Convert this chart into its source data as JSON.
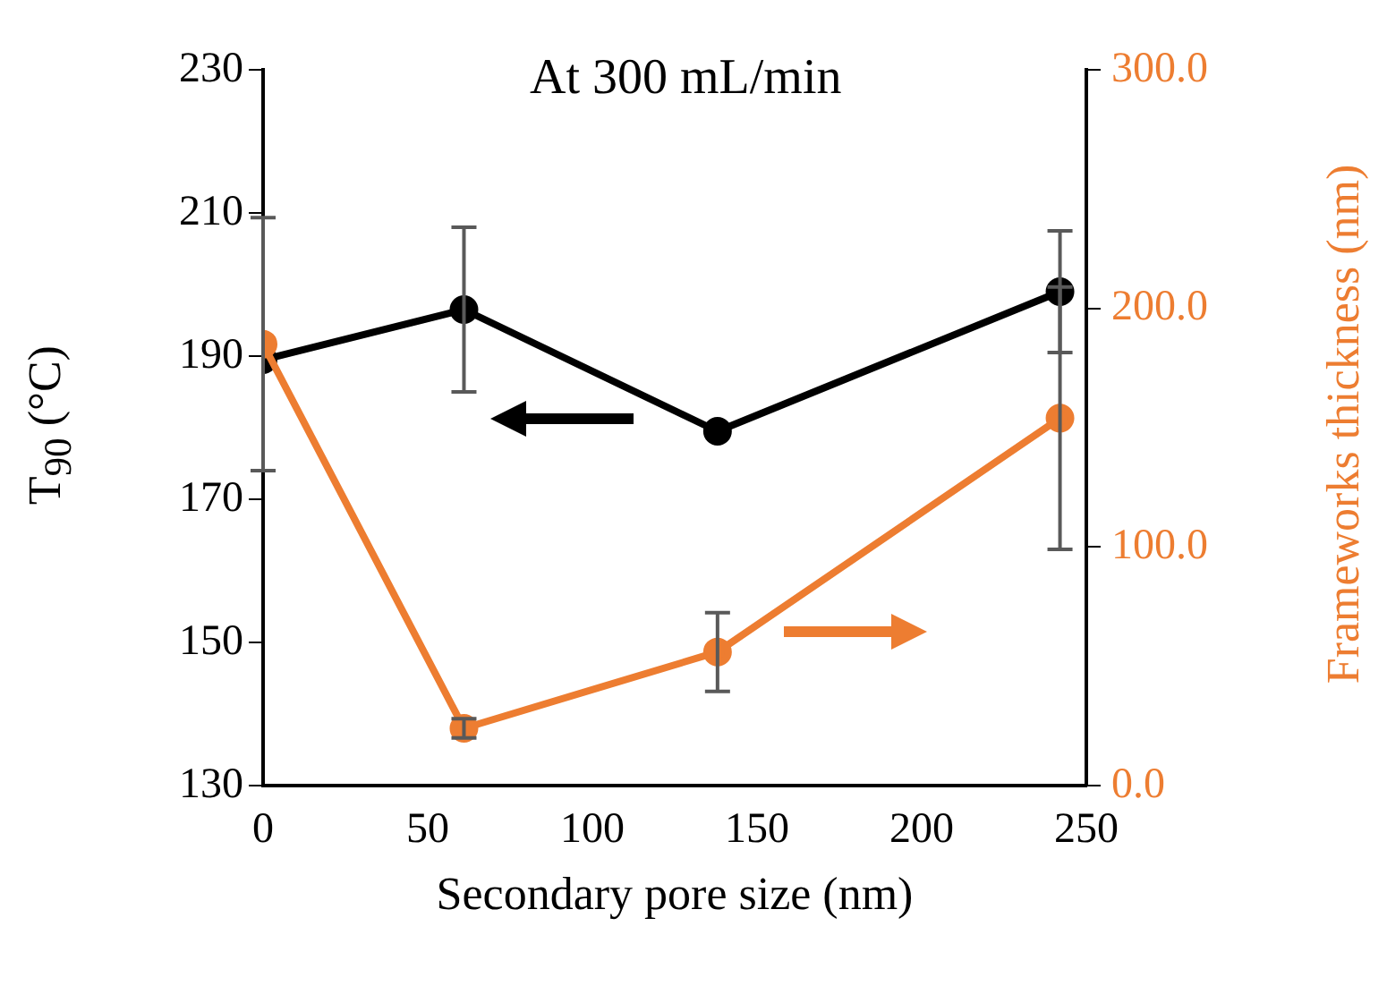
{
  "chart_data": {
    "type": "line",
    "xlabel": "Secondary pore size (nm)",
    "ylabel": "T$_{90}$ (°C)",
    "y2label": "Frameworks thickness (nm)",
    "annotations": [
      "At 300 mL/min"
    ],
    "series": [
      {
        "x": [
          0,
          61,
          138,
          242
        ],
        "values": [
          189.5,
          196.5,
          179.5,
          199
        ],
        "errors": [
          null,
          11.5,
          null,
          8.5
        ],
        "color": "#000000"
      },
      {
        "x": [
          0,
          61,
          138,
          242
        ],
        "values": [
          185,
          24,
          56,
          154
        ],
        "errors": [
          53,
          4,
          16.5,
          55
        ],
        "color": "#ed7d31",
        "axis": "y2"
      }
    ],
    "xlim": [
      0,
      250
    ],
    "xticks": [
      0,
      50,
      100,
      150,
      200,
      250
    ],
    "ylim": [
      130,
      230
    ],
    "yticks": [
      130,
      150,
      170,
      190,
      210,
      230
    ],
    "y2lim": [
      0,
      300
    ],
    "y2ticks": [
      {
        "value": 0,
        "label": "0.0"
      },
      {
        "value": 100,
        "label": "100.0"
      },
      {
        "value": 200,
        "label": "200.0"
      },
      {
        "value": 300,
        "label": "300.0"
      }
    ],
    "marker": "circle",
    "line_style": "solid",
    "grid": false,
    "legend": false
  }
}
